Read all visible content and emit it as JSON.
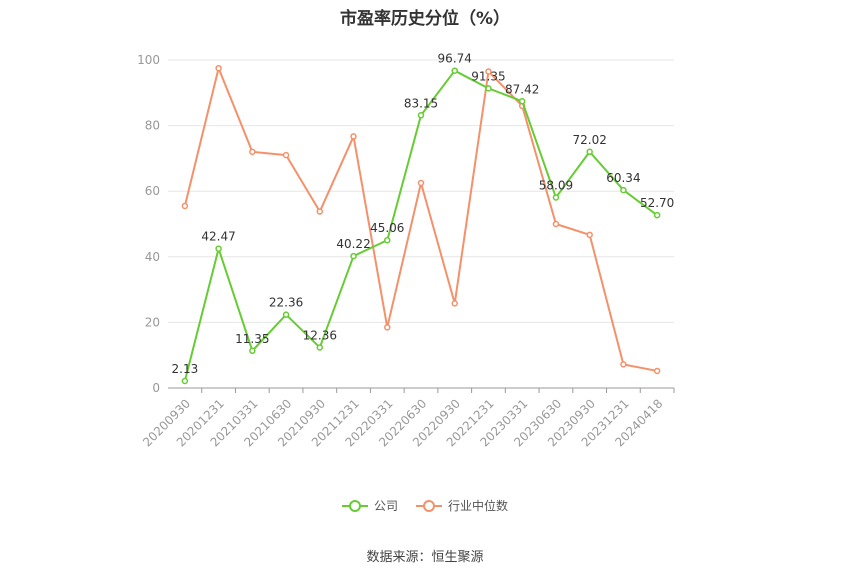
{
  "chart_data": {
    "type": "line",
    "title": "市盈率历史分位（%）",
    "categories": [
      "20200930",
      "20201231",
      "20210331",
      "20210630",
      "20210930",
      "20211231",
      "20220331",
      "20220630",
      "20220930",
      "20221231",
      "20230331",
      "20230630",
      "20230930",
      "20231231",
      "20240418"
    ],
    "series": [
      {
        "name": "公司",
        "color": "#66cc33",
        "values": [
          2.13,
          42.47,
          11.35,
          22.36,
          12.36,
          40.22,
          45.06,
          83.15,
          96.74,
          91.35,
          87.42,
          58.09,
          72.02,
          60.34,
          52.7
        ],
        "labels": [
          "2.13",
          "42.47",
          "11.35",
          "22.36",
          "12.36",
          "40.22",
          "45.06",
          "83.15",
          "96.74",
          "91.35",
          "87.42",
          "58.09",
          "72.02",
          "60.34",
          "52.70"
        ]
      },
      {
        "name": "行业中位数",
        "color": "#f4916a",
        "values": [
          55.5,
          97.5,
          72.0,
          71.0,
          53.8,
          76.7,
          18.5,
          62.5,
          25.8,
          96.5,
          86.0,
          50.0,
          46.7,
          7.2,
          5.2
        ]
      }
    ],
    "ylim": [
      0,
      100
    ],
    "yticks": [
      0,
      20,
      40,
      60,
      80,
      100
    ],
    "grid": true,
    "legend_position": "bottom"
  },
  "source_text": "数据来源：恒生聚源"
}
